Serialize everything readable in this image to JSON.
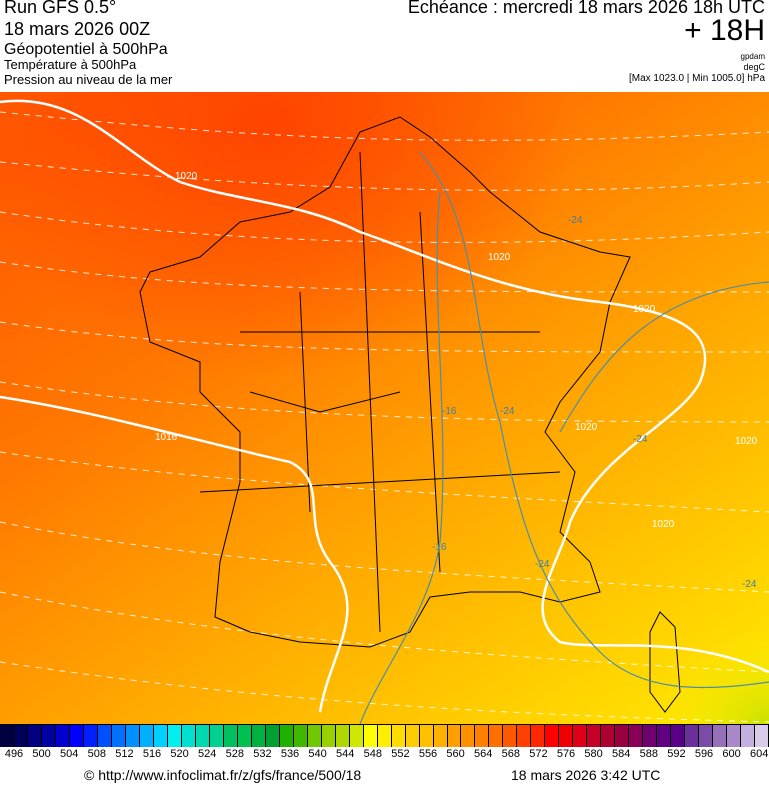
{
  "header": {
    "run": "Run GFS 0.5°",
    "run_date": "18 mars 2026 00Z",
    "field1": "Géopotentiel à 500hPa",
    "field2": "Température à 500hPa",
    "field3": "Pression au niveau de la mer",
    "echeance": "Echéance : mercredi 18 mars 2026 18h UTC",
    "lead": "+ 18H",
    "unit1": "gpdam",
    "unit2": "degC",
    "pressure_range": "[Max 1023.0 | Min 1005.0] hPa"
  },
  "map": {
    "isobar_labels": [
      "1020",
      "1020",
      "1020",
      "1016",
      "1020",
      "1020",
      "1020",
      "1020"
    ],
    "isotherm_labels": [
      "-24",
      "-16",
      "-24",
      "-24",
      "-16",
      "-24",
      "-24"
    ],
    "colors": {
      "isobar": "#ffffff",
      "isotherm": "#4a8fa8",
      "border": "#000000"
    }
  },
  "colorbar": {
    "labels": [
      "496",
      "500",
      "504",
      "508",
      "512",
      "516",
      "520",
      "524",
      "528",
      "532",
      "536",
      "540",
      "544",
      "548",
      "552",
      "556",
      "560",
      "564",
      "568",
      "572",
      "576",
      "580",
      "584",
      "588",
      "592",
      "596",
      "600",
      "604"
    ],
    "colors": [
      "#000040",
      "#00005a",
      "#000080",
      "#0000a0",
      "#0000d0",
      "#0000ff",
      "#0020ff",
      "#0050ff",
      "#0070ff",
      "#0090ff",
      "#00b0ff",
      "#00d0ff",
      "#00f0f0",
      "#00e0d0",
      "#00d8b0",
      "#00d090",
      "#00c060",
      "#00c050",
      "#00b040",
      "#00a030",
      "#20b000",
      "#40b800",
      "#70c800",
      "#98d000",
      "#b0d800",
      "#d0e800",
      "#ffff00",
      "#ffee00",
      "#ffdd00",
      "#ffcc00",
      "#ffc000",
      "#ffb000",
      "#ffa000",
      "#ff9000",
      "#ff8000",
      "#ff7000",
      "#ff5800",
      "#ff4000",
      "#ff2800",
      "#ff0000",
      "#ee0000",
      "#dd0018",
      "#c40028",
      "#ac0030",
      "#980040",
      "#880058",
      "#700070",
      "#600080",
      "#580088",
      "#6a3098",
      "#7a4ca8",
      "#9670b8",
      "#a888c8",
      "#c4b0e0",
      "#d8cce8"
    ],
    "footer_url": "© http://www.infoclimat.fr/z/gfs/france/500/18",
    "footer_time": "18 mars 2026  3:42 UTC"
  }
}
